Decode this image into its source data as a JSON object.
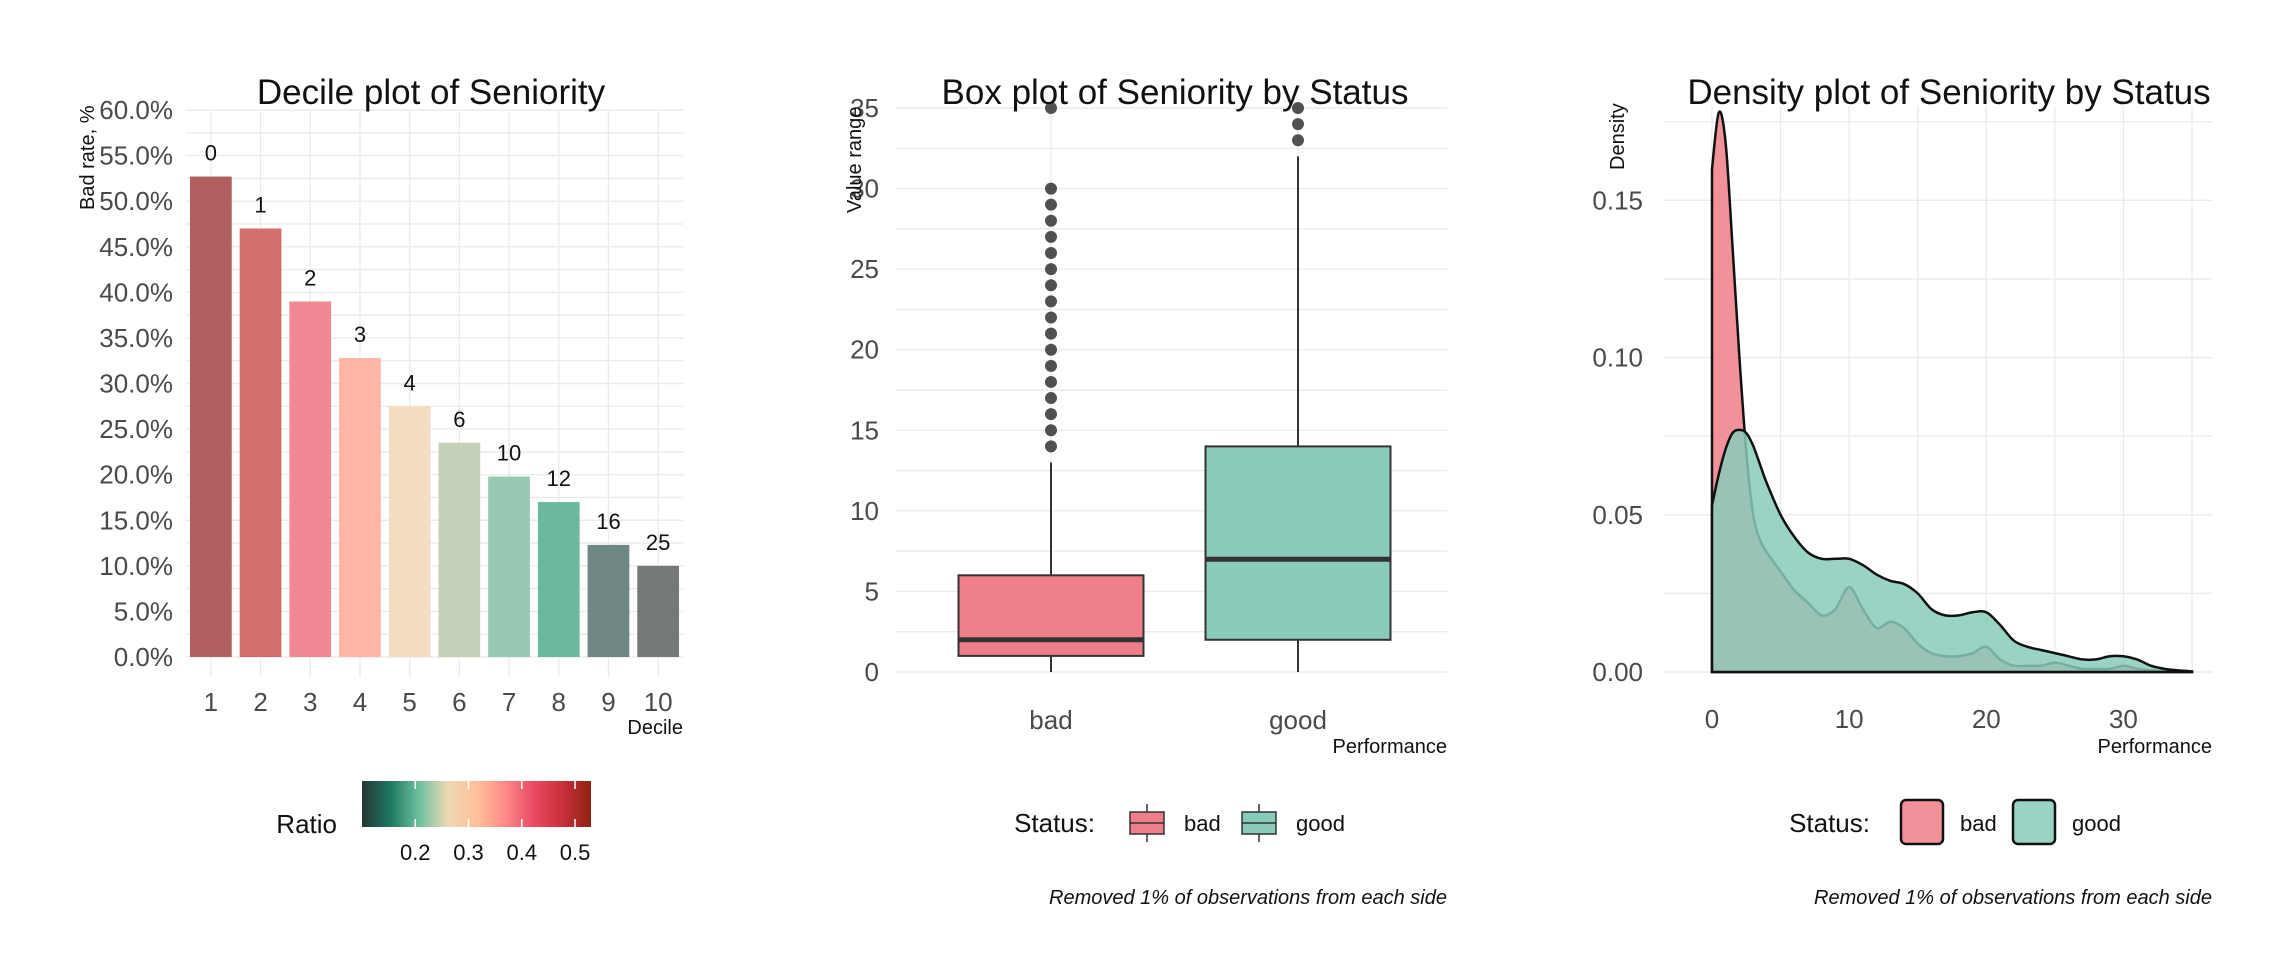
{
  "chart_data": [
    {
      "type": "bar",
      "title": "Decile plot of Seniority",
      "xlabel": "Decile",
      "ylabel": "Bad rate, %",
      "ylim": [
        0,
        0.6
      ],
      "yticks": [
        "0.0%",
        "5.0%",
        "10.0%",
        "15.0%",
        "20.0%",
        "25.0%",
        "30.0%",
        "35.0%",
        "40.0%",
        "45.0%",
        "50.0%",
        "55.0%",
        "60.0%"
      ],
      "categories": [
        "1",
        "2",
        "3",
        "4",
        "5",
        "6",
        "7",
        "8",
        "9",
        "10"
      ],
      "values": [
        0.527,
        0.47,
        0.39,
        0.328,
        0.275,
        0.235,
        0.198,
        0.17,
        0.123,
        0.1
      ],
      "bar_labels": [
        "0",
        "1",
        "2",
        "3",
        "4",
        "6",
        "10",
        "12",
        "16",
        "25"
      ],
      "bar_colors": [
        "#ae5f5e",
        "#d16f6a",
        "#f28894",
        "#ffb6a6",
        "#f2dcc2",
        "#c5d2b9",
        "#98c9b2",
        "#6cb89f",
        "#6e8785",
        "#737879"
      ],
      "legend": {
        "title": "Ratio",
        "ticks": [
          "0.2",
          "0.3",
          "0.4",
          "0.5"
        ],
        "tick_values": [
          0.2,
          0.3,
          0.4,
          0.5
        ],
        "range": [
          0.1,
          0.53
        ],
        "stops": [
          "#253536",
          "#1d7a62",
          "#6ebf9e",
          "#eed9b4",
          "#ffc09a",
          "#ff8a8a",
          "#e84a63",
          "#c9303a",
          "#8e2212"
        ]
      }
    },
    {
      "type": "box",
      "title": "Box plot of Seniority by Status",
      "xlabel": "Performance",
      "ylabel": "Value range",
      "ylim": [
        0,
        35
      ],
      "yticks": [
        "0",
        "5",
        "10",
        "15",
        "20",
        "25",
        "30",
        "35"
      ],
      "categories": [
        "bad",
        "good"
      ],
      "boxes": [
        {
          "name": "bad",
          "min": 0,
          "q1": 1,
          "median": 2,
          "q3": 6,
          "max": 13,
          "color": "#ee7f8a",
          "outliers": [
            14,
            15,
            16,
            17,
            18,
            19,
            20,
            21,
            22,
            23,
            24,
            25,
            26,
            27,
            28,
            29,
            30,
            35
          ]
        },
        {
          "name": "good",
          "min": 0,
          "q1": 2,
          "median": 7,
          "q3": 14,
          "max": 32,
          "color": "#88cbbb",
          "outliers": [
            33,
            34,
            35
          ]
        }
      ],
      "legend": {
        "title": "Status:",
        "entries": [
          "bad",
          "good"
        ]
      },
      "note": "Removed 1% of observations from each side"
    },
    {
      "type": "area",
      "title": "Density plot of Seniority by Status",
      "xlabel": "Performance",
      "ylabel": "Density",
      "xlim": [
        0,
        35
      ],
      "ylim": [
        0,
        0.18
      ],
      "xticks": [
        "0",
        "10",
        "20",
        "30"
      ],
      "xtick_values": [
        0,
        10,
        20,
        30
      ],
      "yticks": [
        "0.00",
        "0.05",
        "0.10",
        "0.15"
      ],
      "ytick_values": [
        0,
        0.05,
        0.1,
        0.15
      ],
      "series": [
        {
          "name": "bad",
          "color": "#ee7f8a",
          "x": [
            0,
            0.5,
            1,
            1.5,
            2,
            2.5,
            3,
            3.5,
            4,
            5,
            6,
            7,
            8,
            9,
            10,
            11,
            12,
            13,
            14,
            15,
            16,
            17,
            18,
            19,
            20,
            21,
            22,
            23,
            24,
            25,
            26,
            27,
            28,
            29,
            30,
            31,
            32,
            33,
            34,
            35
          ],
          "y": [
            0.16,
            0.178,
            0.168,
            0.135,
            0.1,
            0.07,
            0.05,
            0.042,
            0.038,
            0.032,
            0.026,
            0.022,
            0.018,
            0.02,
            0.027,
            0.02,
            0.014,
            0.016,
            0.014,
            0.009,
            0.006,
            0.005,
            0.005,
            0.006,
            0.008,
            0.004,
            0.002,
            0.002,
            0.002,
            0.003,
            0.002,
            0.001,
            0.001,
            0.001,
            0.002,
            0.001,
            0.0005,
            0.0003,
            0.0002,
            0.0001
          ]
        },
        {
          "name": "good",
          "color": "#88cbbb",
          "x": [
            0,
            0.5,
            1,
            1.5,
            2,
            2.5,
            3,
            3.5,
            4,
            5,
            6,
            7,
            8,
            9,
            10,
            11,
            12,
            13,
            14,
            15,
            16,
            17,
            18,
            19,
            20,
            21,
            22,
            23,
            24,
            25,
            26,
            27,
            28,
            29,
            30,
            31,
            32,
            33,
            34,
            35
          ],
          "y": [
            0.053,
            0.063,
            0.071,
            0.076,
            0.077,
            0.076,
            0.072,
            0.066,
            0.06,
            0.05,
            0.043,
            0.038,
            0.036,
            0.036,
            0.036,
            0.034,
            0.031,
            0.029,
            0.028,
            0.025,
            0.02,
            0.018,
            0.018,
            0.019,
            0.019,
            0.015,
            0.01,
            0.008,
            0.007,
            0.006,
            0.005,
            0.004,
            0.004,
            0.005,
            0.005,
            0.004,
            0.002,
            0.001,
            0.0005,
            0.0002
          ]
        }
      ],
      "legend": {
        "title": "Status:",
        "entries": [
          "bad",
          "good"
        ]
      },
      "note": "Removed 1% of observations from each side"
    }
  ]
}
